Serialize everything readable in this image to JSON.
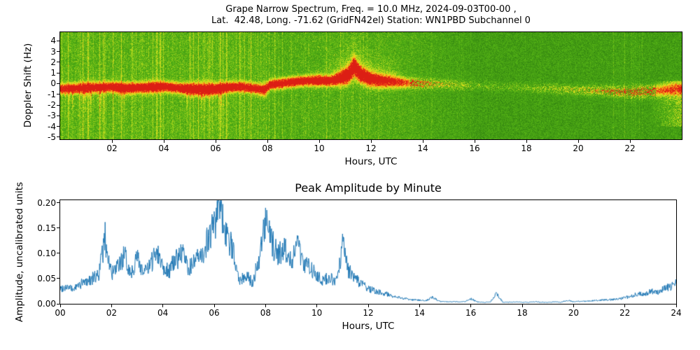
{
  "figure": {
    "background": "#ffffff",
    "top_chart": {
      "title_line1": "Grape Narrow Spectrum, Freq. = 10.0 MHz, 2024-09-03T00-00 ,",
      "title_line2": "Lat.  42.48, Long. -71.62 (GridFN42el) Station: WN1PBD Subchannel 0",
      "ylabel": "Doppler Shift (Hz)",
      "xlabel": "Hours, UTC",
      "xlim": [
        0,
        24
      ],
      "ylim": [
        -5.2,
        4.8
      ],
      "xticks": [
        "02",
        "04",
        "06",
        "08",
        "10",
        "12",
        "14",
        "16",
        "18",
        "20",
        "22"
      ],
      "xtick_values": [
        2,
        4,
        6,
        8,
        10,
        12,
        14,
        16,
        18,
        20,
        22
      ],
      "yticks": [
        "4",
        "3",
        "2",
        "1",
        "0",
        "-1",
        "-2",
        "-3",
        "-4",
        "-5"
      ],
      "ytick_values": [
        4,
        3,
        2,
        1,
        0,
        -1,
        -2,
        -3,
        -4,
        -5
      ]
    },
    "bottom_chart": {
      "title": "Peak Amplitude by Minute",
      "ylabel": "Amplitude, uncalibrated units",
      "xlabel": "Hours, UTC",
      "xlim": [
        0,
        24
      ],
      "ylim": [
        0,
        0.2055
      ],
      "xticks": [
        "00",
        "02",
        "04",
        "06",
        "08",
        "10",
        "12",
        "14",
        "16",
        "18",
        "20",
        "22",
        "24"
      ],
      "xtick_values": [
        0,
        2,
        4,
        6,
        8,
        10,
        12,
        14,
        16,
        18,
        20,
        22,
        24
      ],
      "yticks": [
        "0.20",
        "0.15",
        "0.10",
        "0.05",
        "0.00"
      ],
      "ytick_values": [
        0.2,
        0.15,
        0.1,
        0.05,
        0.0
      ]
    }
  },
  "chart_data": [
    {
      "type": "heatmap",
      "title": "Grape Narrow Spectrum, Freq. = 10.0 MHz, 2024-09-03T00-00 , Lat. 42.48, Long. -71.62 (GridFN42el) Station: WN1PBD Subchannel 0",
      "xlabel": "Hours, UTC",
      "ylabel": "Doppler Shift (Hz)",
      "xlim": [
        0,
        24
      ],
      "ylim": [
        -5.2,
        4.8
      ],
      "colormap": "green-yellow-orange-red",
      "background_colors": {
        "field_green": "#3f9e18",
        "streak_yellow_green": "#a8c61e",
        "core_red": "#dc1e14"
      },
      "carrier_trace": {
        "hours": [
          0,
          0.5,
          1,
          1.5,
          2,
          2.5,
          3,
          3.5,
          4,
          4.5,
          5,
          5.5,
          6,
          6.5,
          7,
          7.5,
          7.9,
          8.1,
          8.5,
          9,
          9.5,
          10,
          10.4,
          10.8,
          11.1,
          11.35,
          11.6,
          12,
          12.5,
          13,
          13.5,
          14,
          15,
          16,
          17,
          18,
          19,
          20,
          21,
          22,
          23,
          24
        ],
        "center_hz": [
          -0.5,
          -0.45,
          -0.4,
          -0.35,
          -0.3,
          -0.45,
          -0.4,
          -0.35,
          -0.3,
          -0.4,
          -0.5,
          -0.55,
          -0.5,
          -0.35,
          -0.3,
          -0.45,
          -0.6,
          -0.1,
          0.0,
          0.15,
          0.25,
          0.3,
          0.2,
          0.45,
          0.7,
          1.5,
          0.8,
          0.35,
          0.2,
          0.1,
          0.05,
          0.0,
          -0.1,
          -0.2,
          -0.3,
          -0.4,
          -0.5,
          -0.6,
          -0.7,
          -0.8,
          -0.7,
          -0.5
        ],
        "intensity": [
          0.85,
          0.9,
          0.9,
          0.95,
          1,
          1,
          1,
          1,
          1,
          1,
          1,
          1,
          1,
          1,
          0.95,
          0.9,
          0.9,
          0.95,
          1,
          1,
          1,
          1,
          0.95,
          1,
          1,
          1,
          0.95,
          0.9,
          0.8,
          0.7,
          0.55,
          0.4,
          0.22,
          0.12,
          0.1,
          0.12,
          0.18,
          0.25,
          0.35,
          0.45,
          0.55,
          0.6
        ],
        "spread_hz": [
          0.3,
          0.3,
          0.35,
          0.3,
          0.3,
          0.35,
          0.3,
          0.35,
          0.3,
          0.3,
          0.35,
          0.4,
          0.35,
          0.3,
          0.3,
          0.3,
          0.35,
          0.3,
          0.3,
          0.3,
          0.3,
          0.35,
          0.3,
          0.4,
          0.5,
          0.6,
          0.5,
          0.45,
          0.4,
          0.35,
          0.3,
          0.3,
          0.3,
          0.3,
          0.3,
          0.3,
          0.3,
          0.3,
          0.3,
          0.35,
          0.35,
          0.4
        ],
        "description": "Bright red/orange carrier line near 0 Hz over green noise field; strongest 00-13 UTC, fading 14-18 UTC, weak speckled return near -0.7 Hz 19-24 UTC"
      },
      "plume": {
        "start_hour": 10.2,
        "end_hour": 13.6,
        "peak_hour": 11.4,
        "max_height_hz": 2.5,
        "description": "Upward yellow turbulent spread above the carrier around local midday"
      }
    },
    {
      "type": "line",
      "title": "Peak Amplitude by Minute",
      "xlabel": "Hours, UTC",
      "ylabel": "Amplitude, uncalibrated units",
      "xlim": [
        0,
        24
      ],
      "ylim": [
        0,
        0.2055
      ],
      "color": "#1f77b4",
      "x_hours": [
        0,
        0.25,
        0.5,
        0.75,
        1,
        1.25,
        1.5,
        1.75,
        2,
        2.25,
        2.5,
        2.75,
        3,
        3.25,
        3.5,
        3.75,
        4,
        4.25,
        4.5,
        4.75,
        5,
        5.25,
        5.5,
        5.75,
        6,
        6.25,
        6.5,
        6.75,
        7,
        7.25,
        7.5,
        7.75,
        8,
        8.25,
        8.5,
        8.75,
        9,
        9.25,
        9.5,
        9.75,
        10,
        10.25,
        10.5,
        10.75,
        11,
        11.25,
        11.5,
        11.75,
        12,
        12.25,
        12.5,
        12.75,
        13,
        13.25,
        13.5,
        13.75,
        14,
        14.25,
        14.5,
        14.75,
        15,
        15.25,
        15.5,
        15.75,
        16,
        16.25,
        16.5,
        16.75,
        17,
        17.25,
        17.5,
        17.75,
        18,
        18.25,
        18.5,
        18.75,
        19,
        19.25,
        19.5,
        19.75,
        20,
        20.25,
        20.5,
        20.75,
        21,
        21.25,
        21.5,
        21.75,
        22,
        22.25,
        22.5,
        22.75,
        23,
        23.25,
        23.5,
        23.75,
        24
      ],
      "values": [
        0.03,
        0.034,
        0.028,
        0.038,
        0.044,
        0.05,
        0.058,
        0.13,
        0.058,
        0.072,
        0.095,
        0.06,
        0.092,
        0.062,
        0.072,
        0.11,
        0.075,
        0.066,
        0.088,
        0.1,
        0.07,
        0.084,
        0.092,
        0.128,
        0.155,
        0.208,
        0.125,
        0.108,
        0.046,
        0.056,
        0.042,
        0.09,
        0.158,
        0.12,
        0.096,
        0.112,
        0.086,
        0.118,
        0.082,
        0.07,
        0.06,
        0.046,
        0.052,
        0.04,
        0.118,
        0.064,
        0.05,
        0.038,
        0.03,
        0.026,
        0.022,
        0.019,
        0.015,
        0.012,
        0.01,
        0.008,
        0.007,
        0.006,
        0.014,
        0.005,
        0.004,
        0.004,
        0.004,
        0.004,
        0.01,
        0.004,
        0.003,
        0.003,
        0.02,
        0.003,
        0.003,
        0.004,
        0.003,
        0.003,
        0.004,
        0.003,
        0.003,
        0.004,
        0.003,
        0.007,
        0.004,
        0.005,
        0.005,
        0.006,
        0.007,
        0.008,
        0.008,
        0.01,
        0.012,
        0.015,
        0.02,
        0.018,
        0.025,
        0.022,
        0.03,
        0.034,
        0.04
      ]
    }
  ]
}
